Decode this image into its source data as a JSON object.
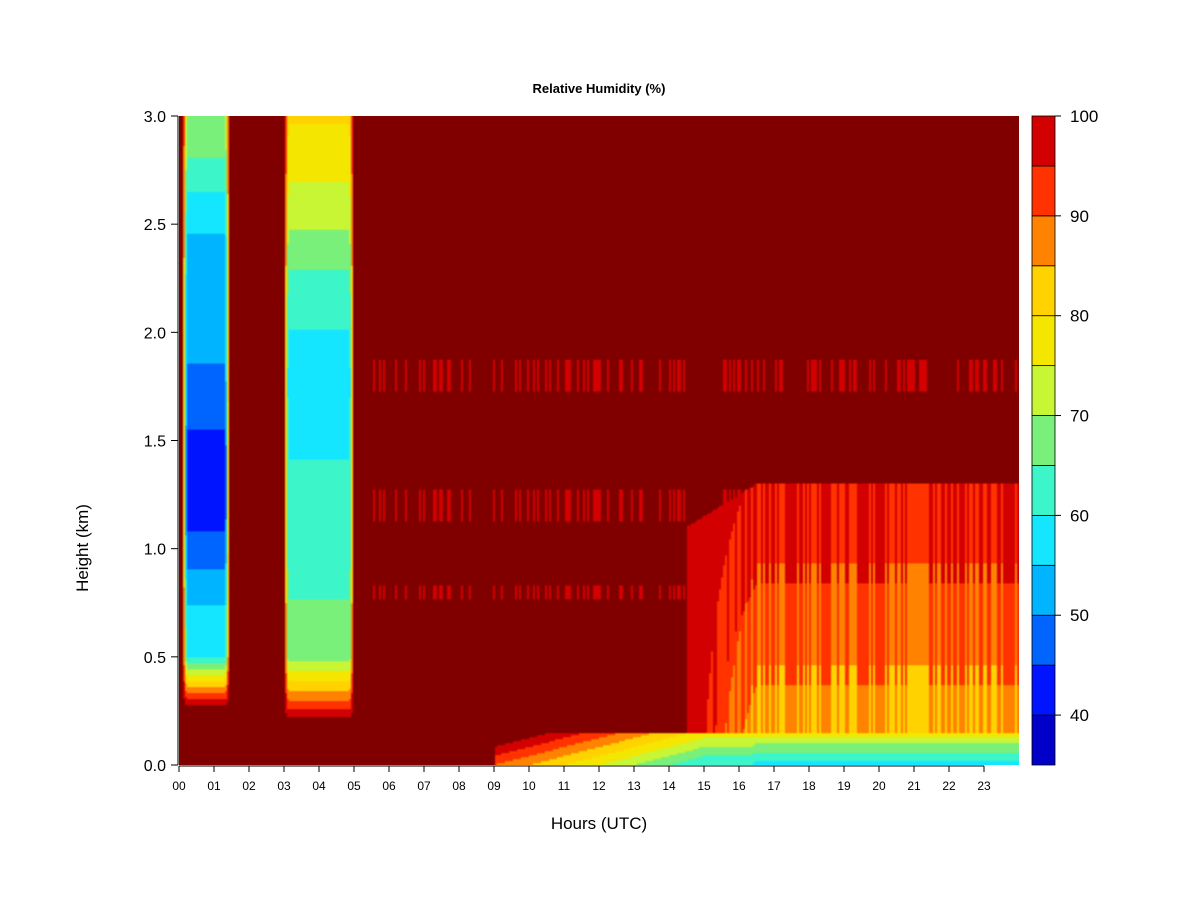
{
  "chart_data": {
    "type": "heatmap",
    "title": "Relative Humidity (%)",
    "xlabel": "Hours (UTC)",
    "ylabel": "Height (km)",
    "xlim": [
      0,
      24
    ],
    "ylim": [
      0,
      3
    ],
    "x_ticks": [
      "00",
      "01",
      "02",
      "03",
      "04",
      "05",
      "06",
      "07",
      "08",
      "09",
      "10",
      "11",
      "12",
      "13",
      "14",
      "15",
      "16",
      "17",
      "18",
      "19",
      "20",
      "21",
      "22",
      "23"
    ],
    "y_ticks": [
      "0.0",
      "0.5",
      "1.0",
      "1.5",
      "2.0",
      "2.5",
      "3.0"
    ],
    "colorbar": {
      "range": [
        35,
        100
      ],
      "levels": [
        35,
        40,
        45,
        50,
        55,
        60,
        65,
        70,
        75,
        80,
        85,
        90,
        95,
        100
      ],
      "colors": [
        "#000080",
        "#0000c8",
        "#0014ff",
        "#0064ff",
        "#00b4ff",
        "#14e6ff",
        "#3cf5c8",
        "#78f07a",
        "#c8f534",
        "#f5e600",
        "#ffd200",
        "#ff8200",
        "#ff3200",
        "#d20000",
        "#800000"
      ],
      "tick_values": [
        40,
        50,
        60,
        70,
        80,
        90,
        100
      ],
      "tick_labels": [
        "40",
        "50",
        "60",
        "70",
        "80",
        "90",
        "100"
      ]
    },
    "description_features": {
      "background_level": 100,
      "dry_column_1_hours": [
        0.1,
        1.45
      ],
      "dry_column_1_min": 38,
      "dry_column_2_hours": [
        3.0,
        5.0
      ],
      "dry_column_2_min": 50,
      "surface_layer_evening_hours": [
        15,
        24
      ],
      "surface_layer_min": 58
    }
  }
}
